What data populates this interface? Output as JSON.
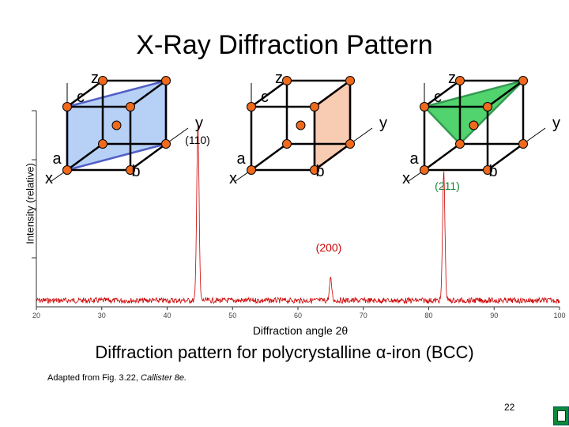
{
  "slide": {
    "title": "X-Ray  Diffraction Pattern",
    "caption_prefix": "Diffraction pattern for polycrystalline  ",
    "caption_alpha": "α",
    "caption_suffix": "-iron (BCC)",
    "credit_prefix": "Adapted from Fig. 3.22, ",
    "credit_italic": "Callister 8e.",
    "page_number": "22"
  },
  "chart_data": {
    "type": "line",
    "title": "",
    "xlabel": "Diffraction angle 2θ",
    "ylabel": "Intensity (relative)",
    "xlim": [
      20,
      100
    ],
    "xticks": [
      20,
      30,
      40,
      50,
      60,
      70,
      80,
      90,
      100
    ],
    "peaks": [
      {
        "label": "(110)",
        "x": 44.7,
        "intensity": 1.0
      },
      {
        "label": "(200)",
        "x": 65.0,
        "intensity": 0.12
      },
      {
        "label": "(211)",
        "x": 82.3,
        "intensity": 0.72
      }
    ]
  },
  "unit_cells": [
    {
      "plane": "(110)",
      "axis_labels": {
        "z": "z",
        "c": "c",
        "a": "a",
        "b": "b",
        "x": "x",
        "y": "y"
      },
      "plane_color": "#aac8f5",
      "plane_edge": "#3344bb"
    },
    {
      "plane": "(200)",
      "axis_labels": {
        "z": "z",
        "c": "c",
        "a": "a",
        "b": "b",
        "x": "x",
        "y": "y"
      },
      "plane_color": "#f7c2a6",
      "plane_edge": "#cc2211"
    },
    {
      "plane": "(211)",
      "axis_labels": {
        "z": "z",
        "c": "c",
        "a": "a",
        "b": "b",
        "x": "x",
        "y": "y"
      },
      "plane_color": "#33cc55",
      "plane_edge": "#118833"
    }
  ],
  "colors": {
    "trace": "#cc0000",
    "atom": "#f06a1e",
    "axis": "#333333"
  }
}
